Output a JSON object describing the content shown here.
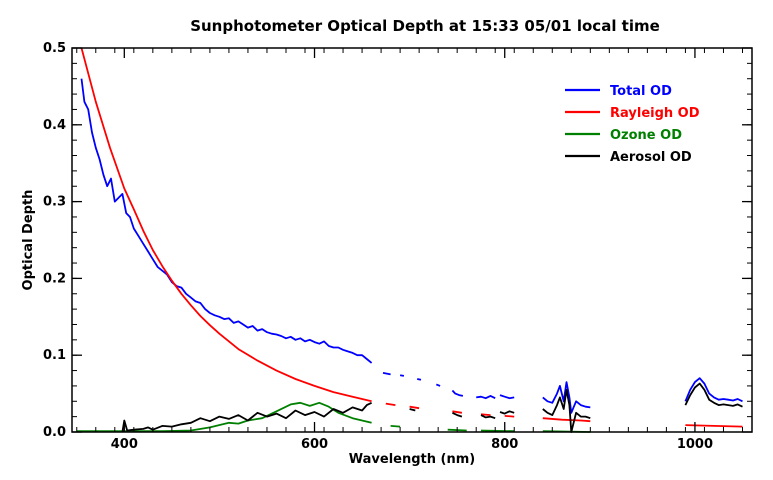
{
  "chart_data": {
    "type": "line",
    "title": "Sunphotometer Optical Depth at 15:33  05/01 local time",
    "xlabel": "Wavelength (nm)",
    "ylabel": "Optical Depth",
    "xlim": [
      345,
      1060
    ],
    "ylim": [
      0,
      0.5
    ],
    "grid": false,
    "legend_position": "top-right",
    "x_ticks": [
      400,
      600,
      800,
      1000
    ],
    "x_tick_labels": [
      "400",
      "600",
      "800",
      "1000"
    ],
    "y_ticks": [
      0,
      0.1,
      0.2,
      0.3,
      0.4,
      0.5
    ],
    "y_tick_labels": [
      "0.0",
      "0.1",
      "0.2",
      "0.3",
      "0.4",
      "0.5"
    ],
    "series": [
      {
        "name": "Total OD",
        "color": "#0000ff",
        "segments": [
          [
            [
              355,
              0.46
            ],
            [
              358,
              0.43
            ],
            [
              362,
              0.42
            ],
            [
              366,
              0.39
            ],
            [
              370,
              0.37
            ],
            [
              374,
              0.355
            ],
            [
              378,
              0.335
            ],
            [
              382,
              0.32
            ],
            [
              386,
              0.33
            ],
            [
              390,
              0.3
            ],
            [
              394,
              0.305
            ],
            [
              398,
              0.31
            ],
            [
              402,
              0.285
            ],
            [
              406,
              0.28
            ],
            [
              410,
              0.265
            ],
            [
              415,
              0.255
            ],
            [
              420,
              0.245
            ],
            [
              425,
              0.235
            ],
            [
              430,
              0.225
            ],
            [
              435,
              0.215
            ],
            [
              440,
              0.21
            ],
            [
              445,
              0.205
            ],
            [
              450,
              0.195
            ],
            [
              455,
              0.19
            ],
            [
              460,
              0.188
            ],
            [
              465,
              0.18
            ],
            [
              470,
              0.175
            ],
            [
              475,
              0.17
            ],
            [
              480,
              0.168
            ],
            [
              485,
              0.16
            ],
            [
              490,
              0.155
            ],
            [
              495,
              0.152
            ],
            [
              500,
              0.15
            ],
            [
              505,
              0.147
            ],
            [
              510,
              0.148
            ],
            [
              515,
              0.142
            ],
            [
              520,
              0.144
            ],
            [
              525,
              0.14
            ],
            [
              530,
              0.136
            ],
            [
              535,
              0.138
            ],
            [
              540,
              0.132
            ],
            [
              545,
              0.134
            ],
            [
              550,
              0.13
            ],
            [
              555,
              0.128
            ],
            [
              560,
              0.127
            ],
            [
              565,
              0.125
            ],
            [
              570,
              0.122
            ],
            [
              575,
              0.124
            ],
            [
              580,
              0.12
            ],
            [
              585,
              0.122
            ],
            [
              590,
              0.118
            ],
            [
              595,
              0.12
            ],
            [
              600,
              0.117
            ],
            [
              605,
              0.115
            ],
            [
              610,
              0.118
            ],
            [
              615,
              0.112
            ],
            [
              620,
              0.11
            ],
            [
              625,
              0.11
            ],
            [
              630,
              0.107
            ],
            [
              635,
              0.105
            ],
            [
              640,
              0.103
            ],
            [
              645,
              0.1
            ],
            [
              650,
              0.1
            ],
            [
              655,
              0.095
            ],
            [
              660,
              0.09
            ]
          ],
          [
            [
              672,
              0.077
            ],
            [
              676,
              0.076
            ],
            [
              680,
              0.075
            ]
          ],
          [
            [
              690,
              0.074
            ],
            [
              694,
              0.073
            ]
          ],
          [
            [
              708,
              0.069
            ],
            [
              712,
              0.068
            ]
          ],
          [
            [
              728,
              0.062
            ],
            [
              732,
              0.06
            ]
          ],
          [
            [
              745,
              0.054
            ],
            [
              748,
              0.05
            ],
            [
              752,
              0.048
            ],
            [
              756,
              0.047
            ]
          ],
          [
            [
              770,
              0.045
            ],
            [
              775,
              0.046
            ],
            [
              780,
              0.044
            ],
            [
              785,
              0.047
            ],
            [
              790,
              0.044
            ]
          ],
          [
            [
              795,
              0.048
            ],
            [
              800,
              0.046
            ],
            [
              805,
              0.044
            ],
            [
              810,
              0.045
            ]
          ],
          [
            [
              840,
              0.045
            ],
            [
              845,
              0.04
            ],
            [
              850,
              0.038
            ],
            [
              855,
              0.05
            ],
            [
              858,
              0.06
            ],
            [
              862,
              0.04
            ],
            [
              865,
              0.065
            ],
            [
              868,
              0.045
            ],
            [
              870,
              0.025
            ],
            [
              875,
              0.04
            ],
            [
              880,
              0.035
            ],
            [
              885,
              0.033
            ],
            [
              890,
              0.032
            ]
          ],
          [
            [
              990,
              0.04
            ],
            [
              995,
              0.055
            ],
            [
              1000,
              0.065
            ],
            [
              1005,
              0.07
            ],
            [
              1010,
              0.063
            ],
            [
              1015,
              0.05
            ],
            [
              1020,
              0.045
            ],
            [
              1025,
              0.042
            ],
            [
              1030,
              0.043
            ],
            [
              1035,
              0.042
            ],
            [
              1040,
              0.041
            ],
            [
              1045,
              0.043
            ],
            [
              1050,
              0.04
            ]
          ]
        ]
      },
      {
        "name": "Rayleigh OD",
        "color": "#ff0000",
        "segments": [
          [
            [
              355,
              0.5
            ],
            [
              370,
              0.43
            ],
            [
              385,
              0.37
            ],
            [
              400,
              0.317
            ],
            [
              410,
              0.29
            ],
            [
              420,
              0.262
            ],
            [
              430,
              0.237
            ],
            [
              440,
              0.216
            ],
            [
              450,
              0.197
            ],
            [
              460,
              0.18
            ],
            [
              470,
              0.165
            ],
            [
              480,
              0.151
            ],
            [
              490,
              0.139
            ],
            [
              500,
              0.128
            ],
            [
              520,
              0.108
            ],
            [
              540,
              0.093
            ],
            [
              560,
              0.08
            ],
            [
              580,
              0.069
            ],
            [
              600,
              0.06
            ],
            [
              620,
              0.052
            ],
            [
              640,
              0.046
            ],
            [
              660,
              0.04
            ]
          ],
          [
            [
              675,
              0.037
            ],
            [
              685,
              0.035
            ]
          ],
          [
            [
              700,
              0.033
            ],
            [
              710,
              0.031
            ]
          ],
          [
            [
              745,
              0.027
            ],
            [
              755,
              0.025
            ]
          ],
          [
            [
              775,
              0.023
            ],
            [
              785,
              0.022
            ]
          ],
          [
            [
              800,
              0.021
            ],
            [
              810,
              0.02
            ]
          ],
          [
            [
              840,
              0.018
            ],
            [
              860,
              0.016
            ],
            [
              880,
              0.015
            ],
            [
              890,
              0.014
            ]
          ],
          [
            [
              990,
              0.009
            ],
            [
              1020,
              0.008
            ],
            [
              1050,
              0.007
            ]
          ]
        ]
      },
      {
        "name": "Ozone OD",
        "color": "#008000",
        "segments": [
          [
            [
              350,
              0.001
            ],
            [
              400,
              0.001
            ],
            [
              440,
              0.001
            ],
            [
              470,
              0.002
            ],
            [
              490,
              0.006
            ],
            [
              510,
              0.012
            ],
            [
              520,
              0.011
            ],
            [
              530,
              0.015
            ],
            [
              545,
              0.018
            ],
            [
              560,
              0.027
            ],
            [
              575,
              0.036
            ],
            [
              585,
              0.038
            ],
            [
              595,
              0.034
            ],
            [
              605,
              0.038
            ],
            [
              615,
              0.033
            ],
            [
              625,
              0.025
            ],
            [
              640,
              0.018
            ],
            [
              660,
              0.012
            ]
          ],
          [
            [
              680,
              0.008
            ],
            [
              690,
              0.007
            ]
          ],
          [
            [
              740,
              0.003
            ],
            [
              760,
              0.002
            ]
          ],
          [
            [
              775,
              0.002
            ],
            [
              810,
              0.001
            ]
          ],
          [
            [
              840,
              0.001
            ],
            [
              890,
              0.0
            ]
          ]
        ]
      },
      {
        "name": "Aerosol OD",
        "color": "#000000",
        "segments": [
          [
            [
              398,
              0.0
            ],
            [
              400,
              0.015
            ],
            [
              403,
              0.002
            ],
            [
              410,
              0.003
            ],
            [
              420,
              0.004
            ],
            [
              425,
              0.006
            ],
            [
              430,
              0.003
            ],
            [
              440,
              0.008
            ],
            [
              450,
              0.007
            ],
            [
              460,
              0.01
            ],
            [
              470,
              0.012
            ],
            [
              480,
              0.018
            ],
            [
              490,
              0.014
            ],
            [
              500,
              0.02
            ],
            [
              510,
              0.017
            ],
            [
              520,
              0.022
            ],
            [
              530,
              0.015
            ],
            [
              540,
              0.025
            ],
            [
              550,
              0.02
            ],
            [
              560,
              0.024
            ],
            [
              570,
              0.018
            ],
            [
              580,
              0.028
            ],
            [
              590,
              0.022
            ],
            [
              600,
              0.026
            ],
            [
              610,
              0.02
            ],
            [
              620,
              0.03
            ],
            [
              630,
              0.025
            ],
            [
              640,
              0.032
            ],
            [
              650,
              0.028
            ],
            [
              655,
              0.035
            ],
            [
              660,
              0.038
            ]
          ],
          [
            [
              700,
              0.03
            ],
            [
              706,
              0.028
            ]
          ],
          [
            [
              745,
              0.025
            ],
            [
              750,
              0.022
            ],
            [
              755,
              0.02
            ]
          ],
          [
            [
              775,
              0.022
            ],
            [
              780,
              0.019
            ],
            [
              785,
              0.02
            ],
            [
              790,
              0.018
            ]
          ],
          [
            [
              795,
              0.026
            ],
            [
              800,
              0.024
            ],
            [
              805,
              0.027
            ],
            [
              810,
              0.025
            ]
          ],
          [
            [
              840,
              0.03
            ],
            [
              845,
              0.025
            ],
            [
              850,
              0.022
            ],
            [
              855,
              0.035
            ],
            [
              858,
              0.045
            ],
            [
              862,
              0.03
            ],
            [
              865,
              0.055
            ],
            [
              868,
              0.035
            ],
            [
              870,
              0.0
            ],
            [
              875,
              0.025
            ],
            [
              880,
              0.02
            ],
            [
              885,
              0.02
            ],
            [
              890,
              0.018
            ]
          ],
          [
            [
              990,
              0.035
            ],
            [
              995,
              0.048
            ],
            [
              1000,
              0.058
            ],
            [
              1005,
              0.063
            ],
            [
              1010,
              0.055
            ],
            [
              1015,
              0.042
            ],
            [
              1020,
              0.038
            ],
            [
              1025,
              0.035
            ],
            [
              1030,
              0.036
            ],
            [
              1035,
              0.035
            ],
            [
              1040,
              0.034
            ],
            [
              1045,
              0.036
            ],
            [
              1050,
              0.033
            ]
          ]
        ]
      }
    ]
  }
}
